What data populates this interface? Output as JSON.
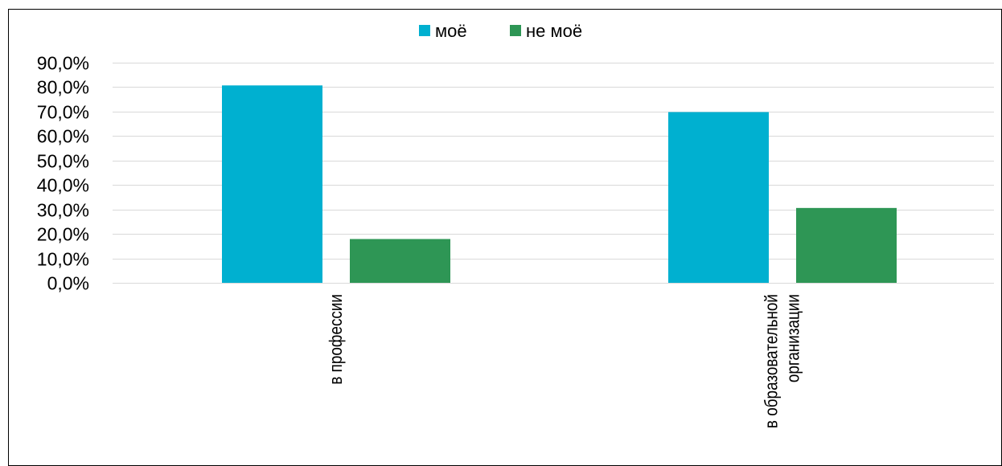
{
  "chart_data": {
    "type": "bar",
    "categories": [
      [
        "в профессии"
      ],
      [
        "в образовательной",
        "организации"
      ]
    ],
    "series": [
      {
        "name": "моё",
        "color": "#00b0d0",
        "values": [
          80.7,
          69.8
        ]
      },
      {
        "name": "не моё",
        "color": "#2e9655",
        "values": [
          17.9,
          30.6
        ]
      }
    ],
    "ylim": [
      0,
      90
    ],
    "yticks": [
      "0,0%",
      "10,0%",
      "20,0%",
      "30,0%",
      "40,0%",
      "50,0%",
      "60,0%",
      "70,0%",
      "80,0%",
      "90,0%"
    ],
    "grid": true,
    "legend": "top-center"
  }
}
